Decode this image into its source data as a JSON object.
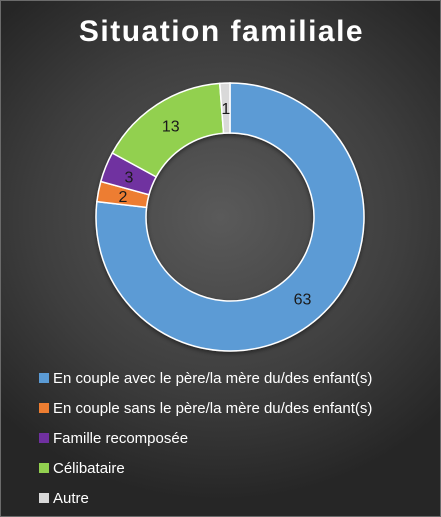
{
  "chart_data": {
    "type": "pie",
    "variant": "donut",
    "title": "Situation familiale",
    "categories": [
      "En couple avec le père/la mère du/des enfant(s)",
      "En couple sans le père/la mère du/des enfant(s)",
      "Famille recomposée",
      "Célibataire",
      "Autre"
    ],
    "values": [
      63,
      2,
      3,
      13,
      1
    ],
    "data_labels": [
      "63",
      "2",
      "3",
      "13",
      "1"
    ],
    "colors": [
      "#5b9bd5",
      "#ed7d31",
      "#7030a0",
      "#92d050",
      "#d9d9d9"
    ],
    "legend_position": "bottom"
  }
}
